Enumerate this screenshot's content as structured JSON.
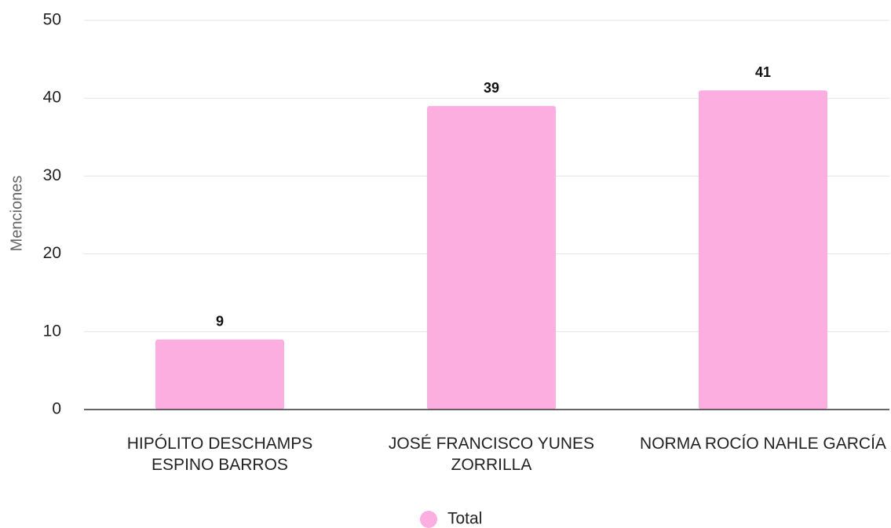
{
  "chart_data": {
    "type": "bar",
    "y_label": "Menciones",
    "categories": [
      "HIPÓLITO DESCHAMPS ESPINO BARROS",
      "JOSÉ FRANCISCO YUNES ZORRILLA",
      "NORMA ROCÍO NAHLE GARCÍA"
    ],
    "series": [
      {
        "name": "Total",
        "color": "#fdaee0",
        "values": [
          9,
          39,
          41
        ]
      }
    ],
    "ylim": [
      0,
      50
    ],
    "yticks": [
      0,
      10,
      20,
      30,
      40,
      50
    ],
    "grid": true,
    "legend": "bottom"
  }
}
